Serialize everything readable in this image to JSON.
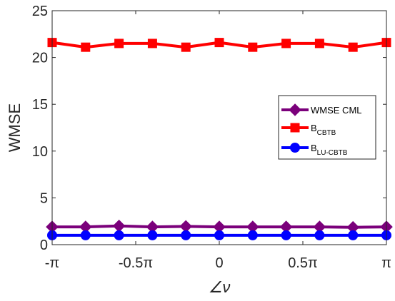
{
  "chart_data": {
    "type": "line",
    "title": "",
    "xlabel": "∠ν",
    "ylabel": "WMSE",
    "xlim": [
      -1,
      1
    ],
    "ylim": [
      0,
      25
    ],
    "x": [
      -1,
      -0.8,
      -0.6,
      -0.4,
      -0.2,
      0,
      0.2,
      0.4,
      0.6,
      0.8,
      1
    ],
    "x_ticks": [
      -1,
      -0.5,
      0,
      0.5,
      1
    ],
    "x_tick_labels": [
      "-π",
      "-0.5π",
      "0",
      "0.5π",
      "π"
    ],
    "y_ticks": [
      0,
      5,
      10,
      15,
      20,
      25
    ],
    "y_tick_labels": [
      "0",
      "5",
      "10",
      "15",
      "20",
      "25"
    ],
    "grid": false,
    "legend_position": "center-right",
    "series": [
      {
        "name": "WMSE CML",
        "name_main": "WMSE CML",
        "name_sub": "",
        "color": "#7b007b",
        "marker": "diamond",
        "values": [
          1.9,
          1.9,
          2.0,
          1.9,
          1.95,
          1.9,
          1.9,
          1.9,
          1.9,
          1.85,
          1.9
        ]
      },
      {
        "name": "B_CBTB",
        "name_main": "B",
        "name_sub": "CBTB",
        "color": "#ff0000",
        "marker": "square",
        "values": [
          21.6,
          21.1,
          21.5,
          21.5,
          21.1,
          21.6,
          21.1,
          21.5,
          21.5,
          21.1,
          21.6
        ]
      },
      {
        "name": "B_LU-CBTB",
        "name_main": "B",
        "name_sub": "LU-CBTB",
        "color": "#0000ff",
        "marker": "circle",
        "values": [
          1.0,
          1.0,
          1.0,
          1.0,
          1.0,
          1.0,
          1.0,
          1.0,
          1.0,
          1.0,
          1.0
        ]
      }
    ]
  }
}
